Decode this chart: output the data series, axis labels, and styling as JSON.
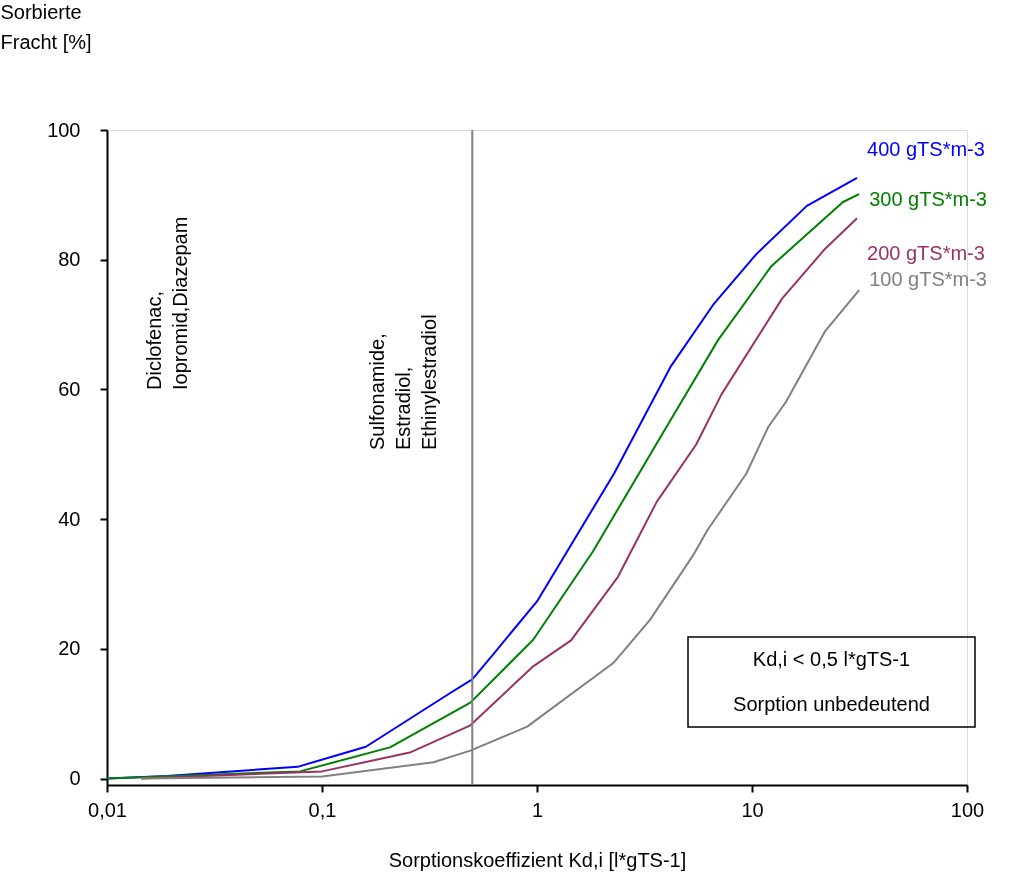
{
  "chart_data": {
    "type": "line",
    "xlabel": "Sorptionskoeffizient Kd,i [l*gTS-1]",
    "ylabel": "Sorbierte\nFracht [%]",
    "log": "x",
    "grid": false,
    "marker": "none",
    "line_style": "solid",
    "xlim": [
      0.01,
      100
    ],
    "xticks": [
      {
        "value": 0.01,
        "label": "0,01"
      },
      {
        "value": 0.1,
        "label": "0,1"
      },
      1,
      10,
      100
    ],
    "ylim": [
      -1,
      100
    ],
    "yticks": [
      0,
      20,
      40,
      60,
      80,
      100
    ],
    "series": [
      {
        "name": "400 gTS*m-3",
        "color": "#0000ff",
        "x": [
          0.01,
          0.019,
          0.077,
          0.16,
          0.4,
          0.5,
          0.62,
          1.0,
          2.28,
          4.2,
          6.65,
          10.5,
          18,
          30.8
        ],
        "values": [
          0,
          0.4,
          1.8,
          4.9,
          13.3,
          15.3,
          19,
          27.3,
          47,
          63.6,
          73.2,
          80.9,
          88.3,
          92.6
        ]
      },
      {
        "name": "300 gTS*m-3",
        "color": "#008000",
        "x": [
          0.01,
          0.079,
          0.207,
          0.49,
          0.96,
          1.82,
          3.9,
          6.95,
          12.3,
          26.5,
          31.5
        ],
        "values": [
          0,
          1.1,
          4.8,
          11.7,
          21.4,
          35,
          53.6,
          67.6,
          79,
          88.9,
          90.1
        ]
      },
      {
        "name": "200 gTS*m-3",
        "color": "#993366",
        "x": [
          0.0144,
          0.1,
          0.256,
          0.49,
          0.96,
          1.44,
          2.38,
          3.61,
          5.5,
          7.2,
          13.8,
          21.9,
          30.8
        ],
        "values": [
          0,
          1.1,
          4,
          8.2,
          17.3,
          21.3,
          31.1,
          42.7,
          51.5,
          59.2,
          74,
          81.7,
          86.4
        ]
      },
      {
        "name": "100 gTS*m-3",
        "color": "#808080",
        "x": [
          0.0144,
          0.1,
          0.33,
          0.49,
          0.9,
          2.28,
          3.36,
          5.32,
          6.18,
          9.4,
          11.9,
          14.4,
          21.9,
          31.5
        ],
        "values": [
          0,
          0.3,
          2.5,
          4.3,
          8,
          17.9,
          24.5,
          34.4,
          38.2,
          47,
          54.2,
          58.1,
          69,
          75.3
        ]
      }
    ],
    "ref_lines": [
      {
        "axis": "x",
        "value": 0.5,
        "color": "#808080"
      }
    ],
    "annotations": [
      "Diclofenac,\nIopromid,Diazepam",
      "Sulfonamide,\nEstradiol,\nEthinylestradiol",
      "Kd,i < 0,5 l*gTS-1\nSorption unbedeutend"
    ]
  }
}
